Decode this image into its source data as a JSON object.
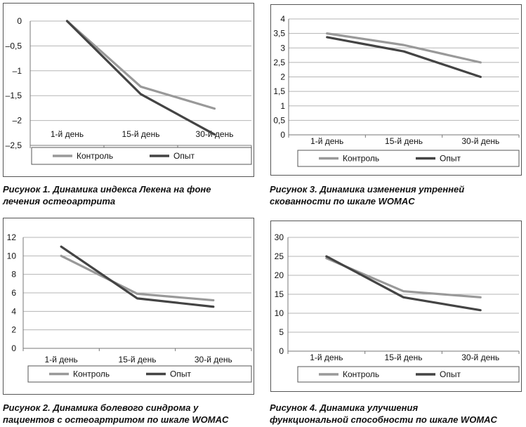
{
  "chart_data": [
    {
      "type": "line",
      "categories": [
        "1-й день",
        "15-й день",
        "30-й день"
      ],
      "series": [
        {
          "name": "Контроль",
          "values": [
            0,
            -1.32,
            -1.76
          ],
          "color": "#999999"
        },
        {
          "name": "Опыт",
          "values": [
            0,
            -1.47,
            -2.28
          ],
          "color": "#444444"
        }
      ],
      "ylim": [
        -2.5,
        0
      ],
      "yticks": [
        "0",
        "–0,5",
        "–1",
        "–1,5",
        "–2",
        "–2,5"
      ],
      "ytick_values": [
        0,
        -0.5,
        -1,
        -1.5,
        -2,
        -2.5
      ],
      "grid": true,
      "legend": "bottom",
      "category_labels_inside": true,
      "caption": [
        "Рисунок 1. Динамика индекса Лекена на фоне",
        "лечения остеоартрита"
      ]
    },
    {
      "type": "line",
      "categories": [
        "1-й день",
        "15-й день",
        "30-й день"
      ],
      "series": [
        {
          "name": "Контроль",
          "values": [
            10,
            5.9,
            5.2
          ],
          "color": "#999999"
        },
        {
          "name": "Опыт",
          "values": [
            11,
            5.4,
            4.5
          ],
          "color": "#444444"
        }
      ],
      "ylim": [
        0,
        12
      ],
      "yticks": [
        "0",
        "2",
        "4",
        "6",
        "8",
        "10",
        "12"
      ],
      "ytick_values": [
        0,
        2,
        4,
        6,
        8,
        10,
        12
      ],
      "grid": true,
      "legend": "bottom",
      "caption": [
        "Рисунок 2. Динамика болевого синдрома у",
        "пациентов с остеоартритом по шкале WOMAC"
      ]
    },
    {
      "type": "line",
      "categories": [
        "1-й день",
        "15-й день",
        "30-й день"
      ],
      "series": [
        {
          "name": "Контроль",
          "values": [
            3.5,
            3.1,
            2.5
          ],
          "color": "#999999"
        },
        {
          "name": "Опыт",
          "values": [
            3.37,
            2.88,
            2.0
          ],
          "color": "#444444"
        }
      ],
      "ylim": [
        0,
        4
      ],
      "yticks": [
        "0",
        "0,5",
        "1",
        "1,5",
        "2",
        "2,5",
        "3",
        "3,5",
        "4"
      ],
      "ytick_values": [
        0,
        0.5,
        1,
        1.5,
        2,
        2.5,
        3,
        3.5,
        4
      ],
      "grid": true,
      "legend": "bottom",
      "caption": [
        "Рисунок 3. Динамика изменения утренней",
        "скованности по шкале WOMAC"
      ]
    },
    {
      "type": "line",
      "categories": [
        "1-й день",
        "15-й день",
        "30-й день"
      ],
      "series": [
        {
          "name": "Контроль",
          "values": [
            24.5,
            15.8,
            14.2
          ],
          "color": "#999999"
        },
        {
          "name": "Опыт",
          "values": [
            25,
            14.2,
            10.8
          ],
          "color": "#444444"
        }
      ],
      "ylim": [
        0,
        30
      ],
      "yticks": [
        "0",
        "5",
        "10",
        "15",
        "20",
        "25",
        "30"
      ],
      "ytick_values": [
        0,
        5,
        10,
        15,
        20,
        25,
        30
      ],
      "grid": true,
      "legend": "bottom",
      "caption": [
        "Рисунок 4. Динамика улучшения",
        "функциональной способности по шкале WOMAC"
      ]
    }
  ]
}
